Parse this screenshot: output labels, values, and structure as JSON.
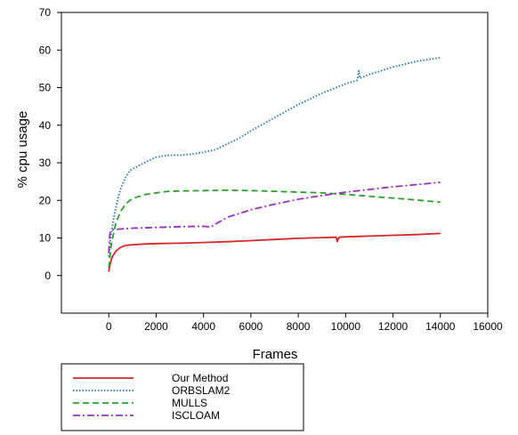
{
  "chart_data": {
    "type": "line",
    "title": "",
    "xlabel": "Frames",
    "ylabel": "% cpu usage",
    "xlim": [
      -2000,
      16000
    ],
    "ylim": [
      -10,
      70
    ],
    "xticks": [
      0,
      2000,
      4000,
      6000,
      8000,
      10000,
      12000,
      14000,
      16000
    ],
    "yticks": [
      0,
      10,
      20,
      30,
      40,
      50,
      60,
      70
    ],
    "grid": false,
    "legend_position": "bottom-left",
    "series": [
      {
        "name": "Our Method",
        "color": "#d62728",
        "style": "solid",
        "x": [
          0,
          50,
          150,
          300,
          500,
          700,
          1000,
          1500,
          2000,
          3000,
          4000,
          5000,
          6000,
          7000,
          8000,
          9000,
          9600,
          9650,
          9700,
          9750,
          10000,
          10500,
          11000,
          12000,
          13000,
          14000
        ],
        "y": [
          1,
          3,
          5,
          6.5,
          7.5,
          8,
          8.2,
          8.4,
          8.5,
          8.6,
          8.8,
          9,
          9.3,
          9.6,
          9.9,
          10.1,
          10.2,
          9,
          10,
          10.2,
          10.3,
          10.4,
          10.5,
          10.7,
          10.9,
          11.2
        ]
      },
      {
        "name": "ORBSLAM2",
        "color": "#1f77b4",
        "style": "dotted",
        "x": [
          0,
          50,
          100,
          200,
          300,
          400,
          500,
          700,
          900,
          1200,
          1500,
          2000,
          2500,
          3000,
          3500,
          4000,
          4500,
          5000,
          5500,
          6000,
          7000,
          8000,
          9000,
          10000,
          10500,
          10550,
          10600,
          11000,
          12000,
          13000,
          14000
        ],
        "y": [
          5,
          8,
          11,
          15,
          18,
          21,
          23,
          26,
          28,
          29,
          30,
          31.5,
          32,
          32,
          32.3,
          32.8,
          33.5,
          35,
          36.5,
          38.5,
          42,
          45.5,
          48.5,
          51,
          52,
          54.5,
          52.5,
          53.5,
          55.5,
          57,
          58
        ]
      },
      {
        "name": "MULLS",
        "color": "#2ca02c",
        "style": "dashed",
        "x": [
          0,
          50,
          100,
          200,
          300,
          500,
          700,
          1000,
          1500,
          2000,
          2500,
          3000,
          4000,
          5000,
          6000,
          7000,
          8000,
          9000,
          10000,
          11000,
          12000,
          13000,
          14000
        ],
        "y": [
          2,
          5,
          8,
          11,
          14,
          17,
          19,
          20.5,
          21.5,
          22,
          22.4,
          22.5,
          22.6,
          22.7,
          22.6,
          22.4,
          22.2,
          22,
          21.6,
          21.1,
          20.6,
          20.1,
          19.5
        ]
      },
      {
        "name": "ISCLOAM",
        "color": "#9b30c0",
        "style": "dashdot",
        "x": [
          0,
          30,
          60,
          100,
          200,
          500,
          1000,
          2000,
          3000,
          4000,
          4300,
          5000,
          6000,
          7000,
          8000,
          9000,
          10000,
          11000,
          12000,
          13000,
          14000
        ],
        "y": [
          6,
          10,
          11.5,
          12,
          12.2,
          12.4,
          12.6,
          12.8,
          13,
          13.1,
          12.9,
          15.5,
          17.5,
          19,
          20.3,
          21.3,
          22.2,
          22.9,
          23.6,
          24.2,
          24.8
        ]
      }
    ]
  }
}
